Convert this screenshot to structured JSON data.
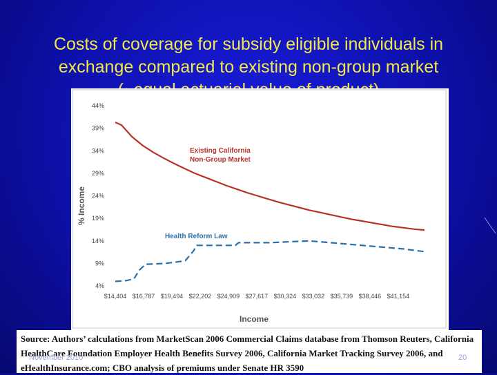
{
  "slide": {
    "title_line1": "Costs of coverage for subsidy eligible individuals in",
    "title_line2": "exchange compared to existing non-group market",
    "title_line3": "(~equal actuarial value of product)",
    "source_line1": "Source: Authors’ calculations from MarketScan 2006 Commercial Claims database from Thomson Reuters, California",
    "source_line2": "HealthCare Foundation Employer Health Benefits Survey 2006, California Market Tracking Survey 2006, and",
    "source_line3": "eHealthInsurance.com; CBO analysis of premiums under Senate HR 3590",
    "footer_date": "November 2010",
    "page_number": "20"
  },
  "colors": {
    "background": "#0d10a8",
    "title": "#f2e84a",
    "existing_series": "#b8322a",
    "reform_series": "#2a6fa8",
    "axis_text": "#444444",
    "axis_title": "#555555"
  },
  "chart_data": {
    "type": "line",
    "xlabel": "Income",
    "ylabel": "% Income",
    "x_ticks": [
      "$14,404",
      "$16,787",
      "$19,494",
      "$22,202",
      "$24,909",
      "$27,617",
      "$30,324",
      "$33,032",
      "$35,739",
      "$38,446",
      "$41,154"
    ],
    "xlim": [
      14404,
      44000
    ],
    "y_ticks": [
      "4%",
      "9%",
      "14%",
      "19%",
      "24%",
      "29%",
      "34%",
      "39%",
      "44%"
    ],
    "ylim": [
      4,
      44
    ],
    "grid": false,
    "series": [
      {
        "name": "Existing California Non-Group Market",
        "label_line1": "Existing California",
        "label_line2": "Non-Group Market",
        "style": "solid",
        "x": [
          14404,
          15000,
          16000,
          17000,
          18000,
          19000,
          20000,
          21000,
          22000,
          23000,
          24000,
          25000,
          26000,
          27000,
          28000,
          29000,
          30000,
          31000,
          32000,
          33000,
          34000,
          35000,
          36000,
          37000,
          38000,
          39000,
          40000,
          41000,
          42000,
          43000,
          44000
        ],
        "y": [
          40.3,
          39.7,
          37.1,
          35.2,
          33.7,
          32.4,
          31.2,
          30.1,
          29.0,
          28.1,
          27.2,
          26.3,
          25.5,
          24.7,
          24.0,
          23.3,
          22.6,
          22.0,
          21.4,
          20.8,
          20.3,
          19.8,
          19.3,
          18.8,
          18.4,
          18.0,
          17.6,
          17.2,
          16.9,
          16.6,
          16.4
        ]
      },
      {
        "name": "Health Reform Law",
        "label_line1": "Health Reform Law",
        "style": "dashed",
        "x": [
          14404,
          15500,
          16200,
          16700,
          17300,
          19200,
          20900,
          21100,
          21900,
          22200,
          25900,
          26200,
          29200,
          31000,
          33000,
          35500,
          38000,
          40500,
          42000,
          44000
        ],
        "y": [
          5.0,
          5.2,
          5.6,
          7.5,
          8.8,
          9.0,
          9.5,
          9.6,
          11.8,
          13.0,
          13.0,
          13.6,
          13.6,
          13.8,
          14.0,
          13.5,
          13.0,
          12.5,
          12.2,
          11.6
        ]
      }
    ]
  }
}
